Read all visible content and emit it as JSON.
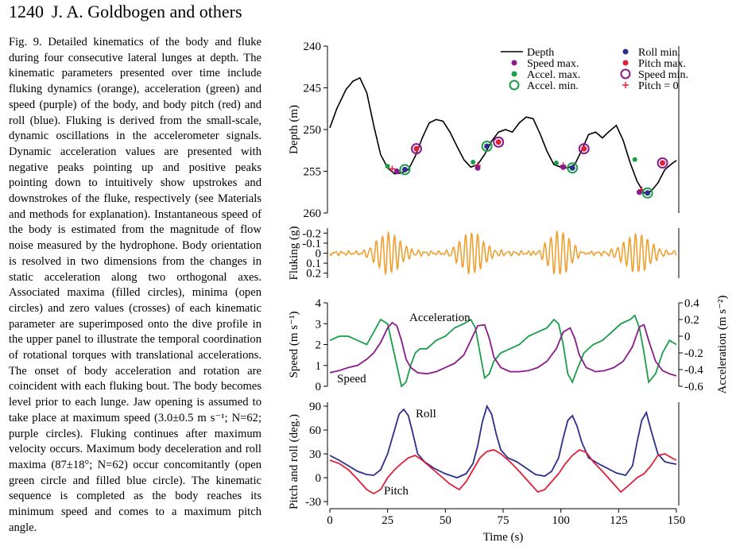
{
  "header": {
    "page_number": "1240",
    "authors": "J. A. Goldbogen and others"
  },
  "caption": {
    "label": "Fig. 9.",
    "text": "Detailed kinematics of the body and fluke during four consecutive lateral lunges at depth. The kinematic parameters presented over time include fluking dynamics (orange), acceleration (green) and speed (purple) of the body, and body pitch (red) and roll (blue). Fluking is derived from the small-scale, dynamic oscillations in the accelerometer signals. Dynamic acceleration values are presented with negative peaks pointing up and positive peaks pointing down to intuitively show upstrokes and downstrokes of the fluke, respectively (see Materials and methods for explanation). Instantaneous speed of the body is estimated from the magnitude of flow noise measured by the hydrophone. Body orientation is resolved in two dimensions from the changes in static acceleration along two orthogonal axes. Associated maxima (filled circles), minima (open circles) and zero values (crosses) of each kinematic parameter are superimposed onto the dive profile in the upper panel to illustrate the temporal coordination of rotational torques with translational accelerations. The onset of body acceleration and rotation are coincident with each fluking bout. The body becomes level prior to each lunge. Jaw opening is assumed to take place at maximum speed (3.0±0.5 m s⁻¹; N=62; purple circles). Fluking continues after maximum velocity occurs. Maximum body deceleration and roll maxima (87±18°; N=62) occur concomitantly (open green circle and filled blue circle). The kinematic sequence is completed as the body reaches its minimum speed and comes to a maximum pitch angle."
  },
  "chart_data": [
    {
      "type": "line",
      "panel": "depth",
      "ylabel": "Depth (m)",
      "ylim": [
        240,
        260
      ],
      "y_inverted": true,
      "yticks": [
        240,
        245,
        250,
        255,
        260
      ],
      "colors": {
        "depth": "#000000",
        "speed_max": "#8b1a8b",
        "accel_max": "#1a9e4a",
        "accel_min": "#1a9e4a",
        "roll_min": "#2e2e8b",
        "pitch_max": "#e0203a",
        "speed_min": "#8b1a8b",
        "pitch_zero": "#e0203a"
      },
      "legend": [
        {
          "key": "depth",
          "label": "Depth",
          "marker": "line"
        },
        {
          "key": "speed_max",
          "label": "Speed max.",
          "marker": "filled"
        },
        {
          "key": "accel_max",
          "label": "Accel. max.",
          "marker": "filled"
        },
        {
          "key": "accel_min",
          "label": "Accel. min.",
          "marker": "open"
        },
        {
          "key": "roll_min",
          "label": "Roll min.",
          "marker": "filled"
        },
        {
          "key": "pitch_max",
          "label": "Pitch max.",
          "marker": "filled"
        },
        {
          "key": "speed_min",
          "label": "Speed min.",
          "marker": "open"
        },
        {
          "key": "pitch_zero",
          "label": "Pitch = 0",
          "marker": "cross"
        }
      ],
      "series": [
        {
          "key": "depth",
          "x": [
            0,
            3,
            7,
            10,
            13,
            16,
            19,
            22,
            25,
            28,
            31,
            34,
            37,
            40,
            43,
            46,
            49,
            52,
            55,
            58,
            61,
            64,
            67,
            70,
            73,
            76,
            79,
            82,
            85,
            88,
            91,
            94,
            97,
            100,
            103,
            106,
            109,
            112,
            115,
            118,
            121,
            124,
            127,
            130,
            133,
            136,
            139,
            142,
            145,
            148,
            150
          ],
          "y": [
            249.8,
            247.5,
            245.2,
            244.2,
            243.8,
            245.6,
            249.5,
            253.0,
            254.6,
            255.3,
            255.2,
            254.8,
            253.2,
            251.0,
            249.2,
            248.8,
            249.0,
            250.3,
            252.0,
            253.6,
            254.5,
            254.2,
            253.0,
            251.4,
            250.3,
            250.0,
            250.3,
            249.2,
            248.5,
            248.7,
            250.5,
            252.6,
            254.2,
            254.5,
            254.6,
            254.2,
            252.5,
            250.6,
            250.3,
            251.0,
            250.2,
            249.5,
            251.3,
            254.0,
            256.2,
            257.6,
            257.4,
            256.4,
            254.8,
            254.1,
            253.7
          ]
        }
      ],
      "markers": [
        {
          "key": "accel_max",
          "x": [
            25,
            62,
            98,
            132
          ],
          "y": [
            254.4,
            253.9,
            254.0,
            253.6
          ]
        },
        {
          "key": "pitch_zero",
          "x": [
            27,
            64,
            101,
            135
          ],
          "y": [
            254.7,
            254.3,
            254.3,
            257.2
          ]
        },
        {
          "key": "speed_max",
          "x": [
            29,
            64,
            101,
            134
          ],
          "y": [
            255.0,
            254.6,
            254.5,
            257.5
          ]
        },
        {
          "key": "accel_min",
          "x": [
            32.5,
            68,
            105,
            137.5
          ],
          "y": [
            254.8,
            252.0,
            254.6,
            257.6
          ]
        },
        {
          "key": "roll_min",
          "x": [
            32.5,
            68,
            105,
            137.5
          ],
          "y": [
            254.8,
            252.0,
            254.6,
            257.6
          ]
        },
        {
          "key": "speed_min",
          "x": [
            37.5,
            73,
            110,
            144
          ],
          "y": [
            252.3,
            251.5,
            252.3,
            254.0
          ]
        },
        {
          "key": "pitch_max",
          "x": [
            37.5,
            73,
            110,
            144
          ],
          "y": [
            252.3,
            251.5,
            252.3,
            254.0
          ]
        }
      ]
    },
    {
      "type": "line",
      "panel": "fluking",
      "ylabel": "Fluking (g)",
      "ylim": [
        -0.25,
        0.25
      ],
      "y_inverted": true,
      "yticks": [
        -0.2,
        -0.1,
        0,
        0.1,
        0.2
      ],
      "ytick_labels": [
        "-0.2",
        "-0.1",
        "0",
        "0.1",
        "0.2"
      ],
      "color": "#f0a030",
      "series": [
        {
          "name": "",
          "x": [
            0,
            150
          ],
          "y": [
            0,
            0
          ]
        }
      ]
    },
    {
      "type": "line",
      "panel": "speed-acceleration",
      "ylabel": "Speed (m s⁻¹)",
      "ylabel_right": "Acceleration (m s⁻²)",
      "ylim": [
        0,
        4
      ],
      "ylim_right": [
        -0.6,
        0.4
      ],
      "yticks": [
        0,
        1,
        2,
        3,
        4
      ],
      "yticks_right": [
        -0.6,
        -0.4,
        -0.2,
        0,
        0.2,
        0.4
      ],
      "yticks_right_labels": [
        "-0.6",
        "-0.4",
        "-0.2",
        "0",
        "0.2",
        "0.4"
      ],
      "annotations": [
        "Acceleration",
        "Speed"
      ],
      "series": [
        {
          "name": "Speed",
          "color": "#8b1a8b",
          "x": [
            0,
            4,
            8,
            12,
            16,
            19,
            22,
            25,
            27,
            29,
            31,
            33,
            35,
            38,
            42,
            46,
            50,
            54,
            58,
            61,
            64,
            67,
            69,
            71,
            74,
            78,
            82,
            86,
            90,
            94,
            98,
            101,
            104,
            106,
            108,
            111,
            115,
            119,
            123,
            127,
            131,
            134,
            136,
            138,
            141,
            144,
            147,
            150
          ],
          "y": [
            0.65,
            0.75,
            0.9,
            1.0,
            1.3,
            1.6,
            2.1,
            2.8,
            3.05,
            2.9,
            2.2,
            1.3,
            0.9,
            0.65,
            0.6,
            0.7,
            0.9,
            1.1,
            1.5,
            2.2,
            2.9,
            2.95,
            2.3,
            1.4,
            0.9,
            0.7,
            0.7,
            0.75,
            0.9,
            1.2,
            1.8,
            2.6,
            2.8,
            2.3,
            1.5,
            0.9,
            0.7,
            0.75,
            0.9,
            1.2,
            1.9,
            2.85,
            2.95,
            2.2,
            1.2,
            0.75,
            0.6,
            0.5
          ]
        },
        {
          "name": "Acceleration",
          "axis": "right",
          "color": "#1a9e4a",
          "x": [
            0,
            4,
            8,
            12,
            16,
            19,
            22,
            25,
            27,
            29,
            31,
            33,
            35,
            37,
            39,
            42,
            46,
            50,
            54,
            58,
            61,
            63,
            65,
            67,
            69,
            71,
            74,
            78,
            82,
            86,
            90,
            94,
            97,
            99,
            101,
            103,
            105,
            107,
            110,
            114,
            118,
            122,
            126,
            130,
            132,
            134,
            136,
            138,
            141,
            144,
            147,
            150
          ],
          "y": [
            -0.05,
            0.0,
            0.0,
            -0.05,
            -0.1,
            0.05,
            0.2,
            0.15,
            -0.1,
            -0.35,
            -0.6,
            -0.55,
            -0.35,
            -0.2,
            -0.15,
            -0.15,
            -0.05,
            0.0,
            0.1,
            0.15,
            0.2,
            0.1,
            -0.2,
            -0.5,
            -0.45,
            -0.3,
            -0.2,
            -0.15,
            -0.1,
            0.0,
            0.05,
            0.1,
            0.2,
            0.15,
            -0.1,
            -0.45,
            -0.55,
            -0.4,
            -0.2,
            -0.1,
            -0.05,
            0.05,
            0.15,
            0.2,
            0.25,
            0.1,
            -0.2,
            -0.55,
            -0.45,
            -0.2,
            -0.05,
            -0.1
          ]
        }
      ]
    },
    {
      "type": "line",
      "panel": "pitch-roll",
      "ylabel": "Pitch and roll (deg.)",
      "xlabel": "Time (s)",
      "ylim": [
        -35,
        95
      ],
      "yticks": [
        -30,
        0,
        30,
        60,
        90
      ],
      "xlim": [
        0,
        150
      ],
      "xticks": [
        0,
        25,
        50,
        75,
        100,
        125,
        150
      ],
      "annotations": [
        "Roll",
        "Pitch"
      ],
      "series": [
        {
          "name": "Roll",
          "color": "#2e2e8b",
          "x": [
            0,
            4,
            8,
            12,
            16,
            19,
            22,
            25,
            28,
            30,
            32,
            34,
            36,
            38,
            41,
            45,
            50,
            55,
            59,
            62,
            64,
            66,
            68,
            70,
            72,
            74,
            77,
            81,
            85,
            89,
            93,
            96,
            99,
            101,
            103,
            105,
            107,
            109,
            112,
            116,
            120,
            124,
            128,
            131,
            133,
            135,
            137,
            139,
            142,
            145,
            148,
            150
          ],
          "y": [
            28,
            22,
            15,
            8,
            4,
            3,
            10,
            30,
            60,
            80,
            86,
            78,
            55,
            30,
            20,
            12,
            5,
            0,
            5,
            18,
            40,
            70,
            90,
            80,
            55,
            35,
            25,
            20,
            12,
            4,
            2,
            8,
            25,
            50,
            72,
            78,
            65,
            45,
            25,
            18,
            12,
            6,
            3,
            15,
            45,
            72,
            82,
            60,
            30,
            20,
            18,
            17
          ]
        },
        {
          "name": "Pitch",
          "color": "#e0203a",
          "x": [
            0,
            4,
            8,
            12,
            16,
            19,
            22,
            25,
            28,
            31,
            34,
            37,
            40,
            44,
            48,
            52,
            56,
            59,
            62,
            65,
            68,
            71,
            74,
            78,
            82,
            86,
            90,
            93,
            96,
            99,
            102,
            105,
            108,
            111,
            114,
            118,
            122,
            126,
            130,
            133,
            136,
            139,
            142,
            145,
            148,
            150
          ],
          "y": [
            22,
            18,
            10,
            -2,
            -15,
            -20,
            -15,
            0,
            10,
            18,
            25,
            28,
            22,
            12,
            2,
            -8,
            -15,
            -5,
            10,
            25,
            33,
            35,
            30,
            20,
            8,
            -5,
            -18,
            -15,
            -5,
            5,
            18,
            28,
            35,
            32,
            20,
            8,
            -5,
            -18,
            -8,
            0,
            5,
            15,
            28,
            30,
            25,
            22
          ]
        }
      ]
    }
  ]
}
